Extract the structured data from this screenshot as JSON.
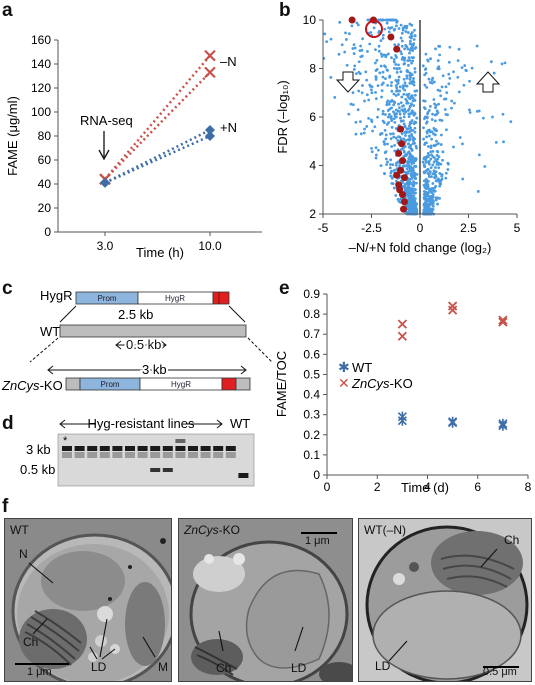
{
  "panel_labels": {
    "a": "a",
    "b": "b",
    "c": "c",
    "d": "d",
    "e": "e",
    "f": "f"
  },
  "panel_a": {
    "ylabel": "FAME (μg/ml)",
    "xlabel": "Time (h)",
    "annotation": "RNA-seq",
    "series_labels": [
      "–N",
      "+N"
    ]
  },
  "panel_b": {
    "ylabel": "FDR (–log₁₀)",
    "xlabel": "–N/+N fold change (log₂)"
  },
  "panel_c": {
    "hygr_label": "HygR",
    "wt_label": "WT",
    "ko_label_italic": "ZnCys",
    "ko_label_rest": "-KO",
    "prom": "Prom",
    "hygr_gene": "HygR",
    "size_top": "2.5 kb",
    "size_mid": "0.5 kb",
    "size_bottom": "3 kb"
  },
  "panel_d": {
    "header": "Hyg-resistant lines",
    "wt": "WT",
    "band_3kb": "3 kb",
    "band_05kb": "0.5 kb",
    "star": "*"
  },
  "panel_e": {
    "ylabel": "FAME/TOC",
    "xlabel": "Time (d)",
    "legend_wt": "WT",
    "legend_ko_italic": "ZnCys",
    "legend_ko_rest": "-KO"
  },
  "panel_f": {
    "img1": {
      "title": "WT",
      "labels": [
        "N",
        "Ch",
        "LD",
        "M"
      ],
      "scale": "1 μm"
    },
    "img2": {
      "title_italic": "ZnCys",
      "title_rest": "-KO",
      "labels": [
        "Ch",
        "LD"
      ],
      "scale": "1 μm"
    },
    "img3": {
      "title": "WT(–N)",
      "labels": [
        "Ch",
        "LD"
      ],
      "scale": "0.5 μm"
    }
  },
  "colors": {
    "red": "#c8524a",
    "blue": "#3d6ea8",
    "lightblue": "#4a9be0",
    "darkred": "#a01818"
  },
  "chart_data": [
    {
      "type": "line",
      "panel": "a",
      "ylabel": "FAME (μg/ml)",
      "xlabel": "Time (h)",
      "x_ticks": [
        "3.0",
        "10.0"
      ],
      "ylim": [
        0,
        160
      ],
      "y_ticks": [
        0,
        20,
        40,
        60,
        80,
        100,
        120,
        140,
        160
      ],
      "series": [
        {
          "name": "–N",
          "values": [
            [
              3.0,
              44,
              147
            ],
            [
              3.0,
              44,
              133
            ]
          ]
        },
        {
          "name": "+N",
          "values": [
            [
              3.0,
              41,
              85
            ],
            [
              3.0,
              41,
              80
            ]
          ]
        }
      ]
    },
    {
      "type": "scatter",
      "panel": "b",
      "xlabel": "–N/+N fold change (log₂)",
      "ylabel": "FDR (–log₁₀)",
      "xlim": [
        -5,
        5
      ],
      "ylim": [
        2,
        10
      ],
      "x_ticks": [
        -5,
        -2.5,
        0,
        2.5,
        5
      ],
      "y_ticks": [
        2,
        4,
        6,
        8,
        10
      ]
    },
    {
      "type": "scatter",
      "panel": "e",
      "xlabel": "Time (d)",
      "ylabel": "FAME/TOC",
      "xlim": [
        0,
        8
      ],
      "ylim": [
        0,
        0.9
      ],
      "x_ticks": [
        0,
        2,
        4,
        6,
        8
      ],
      "y_ticks": [
        0,
        0.1,
        0.2,
        0.3,
        0.4,
        0.5,
        0.6,
        0.7,
        0.8,
        0.9
      ],
      "series": [
        {
          "name": "WT",
          "x": [
            3,
            3,
            5,
            5,
            7,
            7
          ],
          "y": [
            0.29,
            0.27,
            0.265,
            0.26,
            0.255,
            0.245
          ]
        },
        {
          "name": "ZnCys-KO",
          "x": [
            3,
            3,
            5,
            5,
            7,
            7
          ],
          "y": [
            0.75,
            0.69,
            0.84,
            0.82,
            0.77,
            0.76
          ]
        }
      ]
    }
  ]
}
